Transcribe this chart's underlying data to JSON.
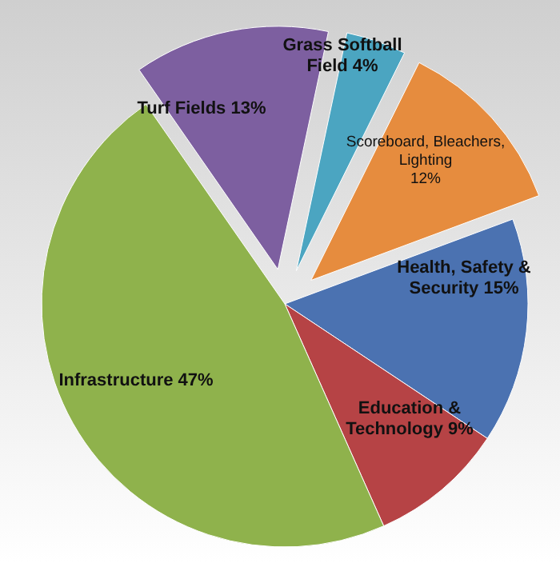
{
  "chart_data": {
    "type": "pie",
    "categories": [
      "Grass Softball Field",
      "Scoreboard, Bleachers, Lighting",
      "Health, Safety & Security",
      "Education & Technology",
      "Infrastructure",
      "Turf Fields"
    ],
    "values": [
      4,
      12,
      15,
      9,
      47,
      13
    ],
    "colors": [
      "#4ba5c1",
      "#e68c3e",
      "#4b72b1",
      "#b64345",
      "#8fb24c",
      "#7d5fa0"
    ],
    "value_labels": [
      "4%",
      "12%",
      "15%",
      "9%",
      "47%",
      "13%"
    ]
  }
}
